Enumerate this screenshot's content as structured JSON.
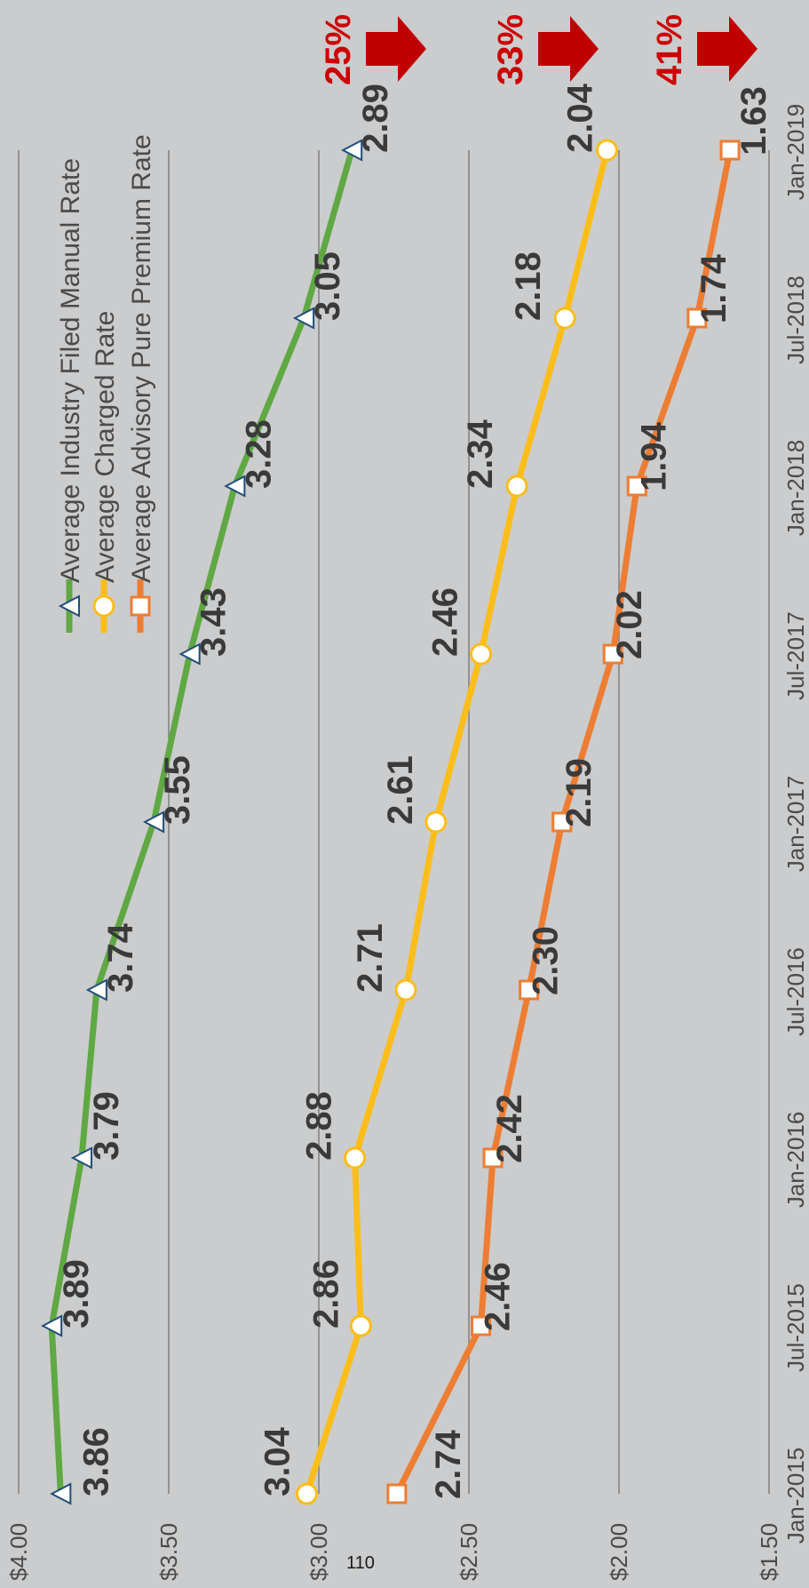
{
  "page_number": "110",
  "chart_data": {
    "type": "line",
    "orientation": "rotated-90-ccw",
    "categories": [
      "Jan-2015",
      "Jul-2015",
      "Jan-2016",
      "Jul-2016",
      "Jan-2017",
      "Jul-2017",
      "Jan-2018",
      "Jul-2018",
      "Jan-2019"
    ],
    "y_tick_labels": [
      "$1.50",
      "$2.00",
      "$2.50",
      "$3.00",
      "$3.50",
      "$4.00"
    ],
    "y_ticks": [
      1.5,
      2.0,
      2.5,
      3.0,
      3.5,
      4.0
    ],
    "ylim": [
      1.5,
      4.0
    ],
    "grid": true,
    "legend_position": "top",
    "series": [
      {
        "name": "Average Industry Filed Manual Rate",
        "marker": "triangle",
        "color": "#5fa843",
        "values": [
          3.86,
          3.89,
          3.79,
          3.74,
          3.55,
          3.43,
          3.28,
          3.05,
          2.89
        ],
        "labels": [
          "3.86",
          "3.89",
          "3.79",
          "3.74",
          "3.55",
          "3.43",
          "3.28",
          "3.05",
          "2.89"
        ]
      },
      {
        "name": "Average Charged Rate",
        "marker": "circle",
        "color": "#fbbd19",
        "values": [
          3.04,
          2.86,
          2.88,
          2.71,
          2.61,
          2.46,
          2.34,
          2.18,
          2.04
        ],
        "labels": [
          "3.04",
          "2.86",
          "2.88",
          "2.71",
          "2.61",
          "2.46",
          "2.34",
          "2.18",
          "2.04"
        ]
      },
      {
        "name": "Average Advisory Pure Premium Rate",
        "marker": "square",
        "color": "#ed7d33",
        "values": [
          2.74,
          2.46,
          2.42,
          2.3,
          2.19,
          2.02,
          1.94,
          1.74,
          1.63
        ],
        "labels": [
          "2.74",
          "2.46",
          "2.42",
          "2.30",
          "2.19",
          "2.02",
          "1.94",
          "1.74",
          "1.63"
        ]
      }
    ],
    "annotations": [
      {
        "text": "25%",
        "color": "#cc0000",
        "arrow_color": "#c00000"
      },
      {
        "text": "33%",
        "color": "#cc0000",
        "arrow_color": "#c00000"
      },
      {
        "text": "41%",
        "color": "#cc0000",
        "arrow_color": "#c00000"
      }
    ]
  }
}
